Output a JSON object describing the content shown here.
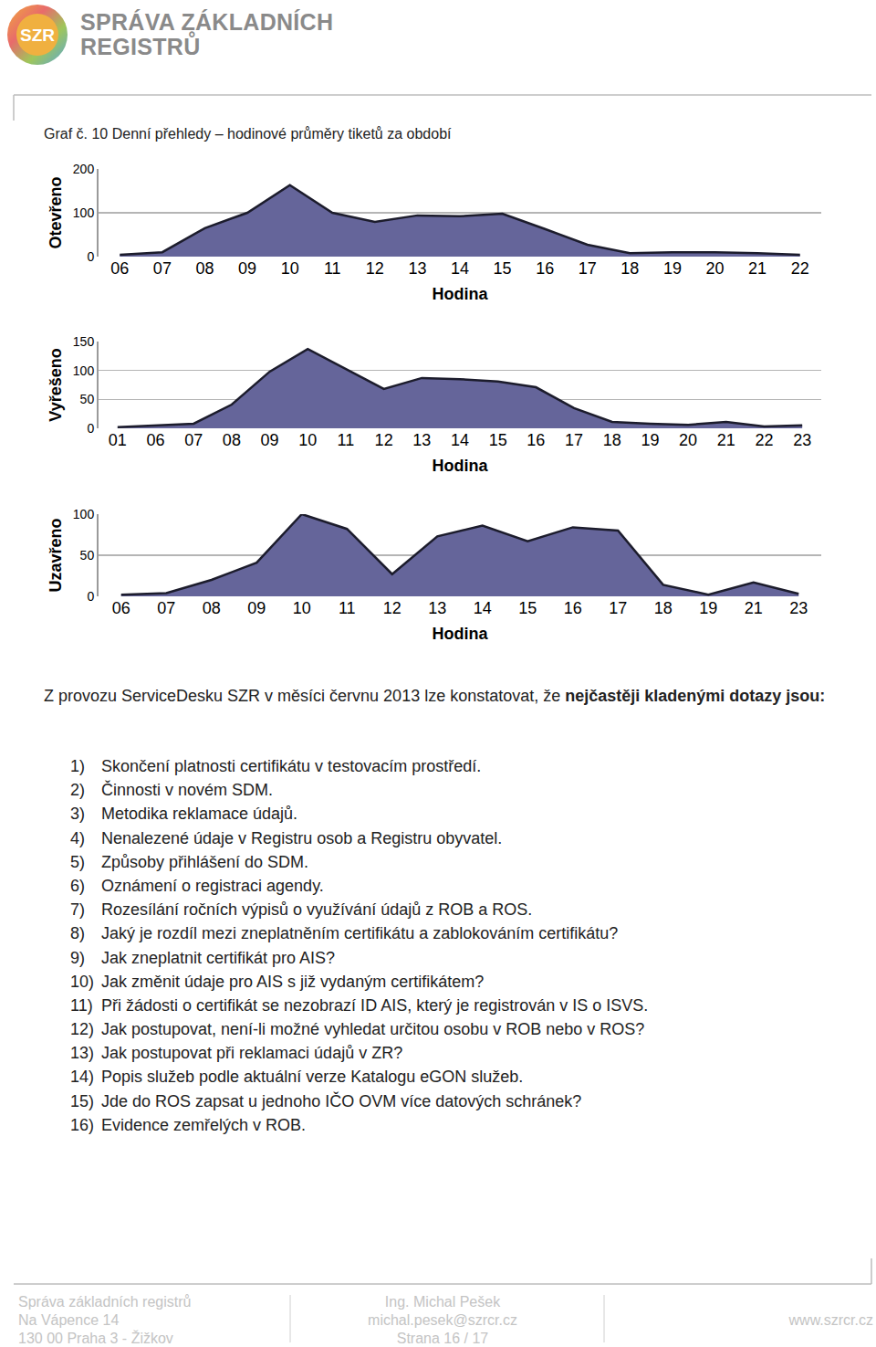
{
  "header": {
    "logo": "SZR",
    "title_line1": "SPRÁVA ZÁKLADNÍCH",
    "title_line2": "REGISTRŮ"
  },
  "caption": "Graf č. 10 Denní přehledy – hodinové průměry tiketů za období",
  "chart_data": [
    {
      "type": "area",
      "ylabel": "Otevřeno",
      "xlabel": "Hodina",
      "categories": [
        "06",
        "07",
        "08",
        "09",
        "10",
        "11",
        "12",
        "13",
        "14",
        "15",
        "16",
        "17",
        "18",
        "19",
        "20",
        "21",
        "22"
      ],
      "values": [
        4,
        10,
        65,
        100,
        163,
        100,
        79,
        94,
        92,
        98,
        63,
        27,
        8,
        10,
        10,
        8,
        4
      ],
      "color": "#65659a",
      "ylim": [
        0,
        200
      ],
      "yticks": [
        0,
        100,
        200
      ],
      "grid": true
    },
    {
      "type": "area",
      "ylabel": "Vyřešeno",
      "xlabel": "Hodina",
      "categories": [
        "01",
        "06",
        "07",
        "08",
        "09",
        "10",
        "11",
        "12",
        "13",
        "14",
        "15",
        "16",
        "17",
        "18",
        "19",
        "20",
        "21",
        "22",
        "23"
      ],
      "values": [
        2,
        5,
        8,
        41,
        98,
        137,
        103,
        68,
        87,
        85,
        81,
        71,
        35,
        11,
        8,
        6,
        11,
        3,
        5
      ],
      "color": "#65659a",
      "ylim": [
        0,
        150
      ],
      "yticks": [
        0,
        50,
        100,
        150
      ],
      "grid": true
    },
    {
      "type": "area",
      "ylabel": "Uzavřeno",
      "xlabel": "Hodina",
      "categories": [
        "06",
        "07",
        "08",
        "09",
        "10",
        "11",
        "12",
        "13",
        "14",
        "15",
        "16",
        "17",
        "18",
        "19",
        "21",
        "23"
      ],
      "values": [
        2,
        4,
        20,
        41,
        100,
        82,
        27,
        73,
        86,
        67,
        84,
        80,
        14,
        2,
        17,
        3
      ],
      "color": "#65659a",
      "ylim": [
        0,
        100
      ],
      "yticks": [
        0,
        50,
        100
      ],
      "grid": true
    }
  ],
  "intro": {
    "text": "Z provozu ServiceDesku SZR v měsíci červnu 2013 lze konstatovat, že ",
    "bold": "nejčastěji kladenými dotazy jsou:"
  },
  "list": [
    {
      "number": "1)",
      "text": "Skončení platnosti certifikátu v testovacím prostředí."
    },
    {
      "number": "2)",
      "text": "Činnosti v novém SDM."
    },
    {
      "number": "3)",
      "text": "Metodika reklamace údajů."
    },
    {
      "number": "4)",
      "text": "Nenalezené údaje v Registru osob a Registru obyvatel."
    },
    {
      "number": "5)",
      "text": "Způsoby přihlášení do SDM."
    },
    {
      "number": "6)",
      "text": "Oznámení o registraci agendy."
    },
    {
      "number": "7)",
      "text": "Rozesílání ročních výpisů o využívání údajů z ROB a ROS."
    },
    {
      "number": "8)",
      "text": "Jaký je rozdíl mezi zneplatněním certifikátu a zablokováním certifikátu?"
    },
    {
      "number": "9)",
      "text": "Jak zneplatnit certifikát pro AIS?"
    },
    {
      "number": "10)",
      "text": "Jak změnit údaje pro AIS s již vydaným certifikátem?"
    },
    {
      "number": "11)",
      "text": "Při žádosti o certifikát se nezobrazí ID AIS, který je registrován v IS o ISVS."
    },
    {
      "number": "12)",
      "text": "Jak postupovat, není-li možné vyhledat určitou osobu v ROB nebo v ROS?"
    },
    {
      "number": "13)",
      "text": "Jak postupovat při reklamaci údajů v ZR?"
    },
    {
      "number": "14)",
      "text": "Popis služeb podle aktuální verze Katalogu  eGON služeb."
    },
    {
      "number": "15)",
      "text": "Jde do ROS zapsat u jednoho IČO OVM více datových schránek?"
    },
    {
      "number": "16)",
      "text": "Evidence zemřelých v ROB."
    }
  ],
  "footer": {
    "left": [
      "Správa základních registrů",
      "Na Vápence 14",
      "130 00 Praha 3 - Žižkov"
    ],
    "center": [
      "Ing. Michal Pešek",
      "michal.pesek@szrcr.cz",
      "Strana 16 / 17"
    ],
    "right": "www.szrcr.cz"
  }
}
